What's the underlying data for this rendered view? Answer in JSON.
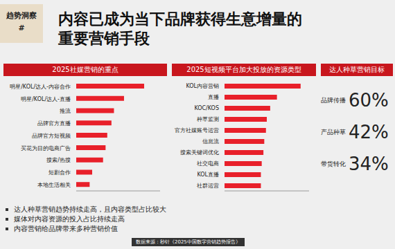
{
  "tag": [
    "趋势洞察",
    "#"
  ],
  "title": [
    "内容已成为当下品牌获得生意增量的",
    "重要营销手段"
  ],
  "chart_data": [
    {
      "type": "bar",
      "title": "2025社媒营销的重点",
      "orientation": "horizontal",
      "categories": [
        "明星/KOL/达人-内容合作",
        "明星/KOL/达人-直播",
        "推流",
        "品牌官方直播",
        "品牌官方短视频",
        "买花为目的电商广告",
        "搜索/热搜",
        "短剧合作",
        "本地生活相关"
      ],
      "values": [
        81,
        57,
        45,
        42,
        37,
        35,
        32,
        19,
        16
      ],
      "color": "#e8202a",
      "xlim": [
        0,
        100
      ],
      "tick_labels": "y"
    },
    {
      "type": "bar",
      "title": "2025短视频平台加大投放的资源类型",
      "orientation": "horizontal",
      "categories": [
        "KOL内容营销",
        "直播",
        "KOC/KOS",
        "种草监测",
        "官方社媒账号运营",
        "信息流",
        "搜索关键词优化",
        "社交电商",
        "KOL直播",
        "社群运营"
      ],
      "values": [
        90,
        62,
        54,
        50,
        49,
        47,
        46,
        44,
        43,
        43
      ],
      "color": "#e8202a",
      "xlim": [
        0,
        100
      ],
      "tick_labels": "y"
    }
  ],
  "stats": {
    "title": "达人种草营销目标",
    "labels": [
      "品牌传播",
      "产品种草",
      "带货转化"
    ],
    "values": [
      60,
      42,
      34
    ],
    "value_labels": [
      "60%",
      "42%",
      "34%"
    ]
  },
  "bullets": [
    "达人种草营销趋势持续走高，且内容类型占比较大",
    "媒体对内容资源的投入占比持续走高",
    "内容营销给品牌带来多种营销价值"
  ],
  "source": "数据来源：秒针《2025中国数字营销趋势报告》"
}
